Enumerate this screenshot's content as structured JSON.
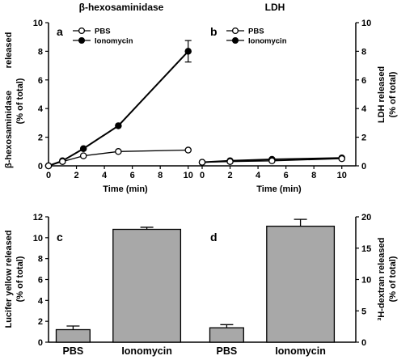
{
  "chart_data": [
    {
      "id": "a",
      "type": "line",
      "panel_label": "a",
      "title": "β-hexosaminidase",
      "xlabel": "Time (min)",
      "ylabel_lines": [
        "β-hexosaminidase",
        "(% of total)",
        "released"
      ],
      "xlim": [
        0,
        11
      ],
      "ylim": [
        0,
        10
      ],
      "xticks": [
        0,
        2,
        4,
        6,
        8,
        10
      ],
      "yticks": [
        0,
        2,
        4,
        6,
        8,
        10
      ],
      "legend_position": "top-left",
      "series": [
        {
          "name": "PBS",
          "marker": "open-circle",
          "x": [
            0,
            1,
            2.5,
            5,
            10
          ],
          "y": [
            0,
            0.3,
            0.7,
            1.0,
            1.1
          ]
        },
        {
          "name": "Ionomycin",
          "marker": "filled-circle",
          "x": [
            0,
            1,
            2.5,
            5,
            10
          ],
          "y": [
            0,
            0.35,
            1.2,
            2.8,
            8.0
          ],
          "error": [
            0,
            0,
            0,
            0,
            0.75
          ]
        }
      ]
    },
    {
      "id": "b",
      "type": "line",
      "panel_label": "b",
      "title": "LDH",
      "xlabel": "Time (min)",
      "ylabel_lines": [
        "LDH released",
        "(% of total)"
      ],
      "xlim": [
        0,
        11
      ],
      "ylim": [
        0,
        10
      ],
      "xticks": [
        0,
        2,
        4,
        6,
        8,
        10
      ],
      "yticks": [
        0,
        2,
        4,
        6,
        8,
        10
      ],
      "legend_position": "top-left",
      "series": [
        {
          "name": "PBS",
          "marker": "open-circle",
          "x": [
            0,
            2,
            5,
            10
          ],
          "y": [
            0.25,
            0.3,
            0.35,
            0.5
          ]
        },
        {
          "name": "Ionomycin",
          "marker": "filled-circle",
          "x": [
            0,
            2,
            5,
            10
          ],
          "y": [
            0.25,
            0.35,
            0.45,
            0.55
          ]
        }
      ]
    },
    {
      "id": "c",
      "type": "bar",
      "panel_label": "c",
      "categories": [
        "PBS",
        "Ionomycin"
      ],
      "values": [
        1.2,
        10.8
      ],
      "errors": [
        0.35,
        0.2
      ],
      "ylabel_lines": [
        "Lucifer yellow released",
        "(% of total)"
      ],
      "ylim": [
        0,
        12
      ],
      "yticks": [
        0,
        2,
        4,
        6,
        8,
        10,
        12
      ],
      "bar_color": "#a8a8a8"
    },
    {
      "id": "d",
      "type": "bar",
      "panel_label": "d",
      "categories": [
        "PBS",
        "Ionomycin"
      ],
      "values": [
        2.3,
        18.5
      ],
      "errors": [
        0.5,
        1.1
      ],
      "ylabel_lines": [
        "³H-dextran released",
        "(% of total)"
      ],
      "ylim": [
        0,
        20
      ],
      "yticks": [
        0,
        5,
        10,
        15,
        20
      ],
      "bar_color": "#a8a8a8"
    }
  ]
}
